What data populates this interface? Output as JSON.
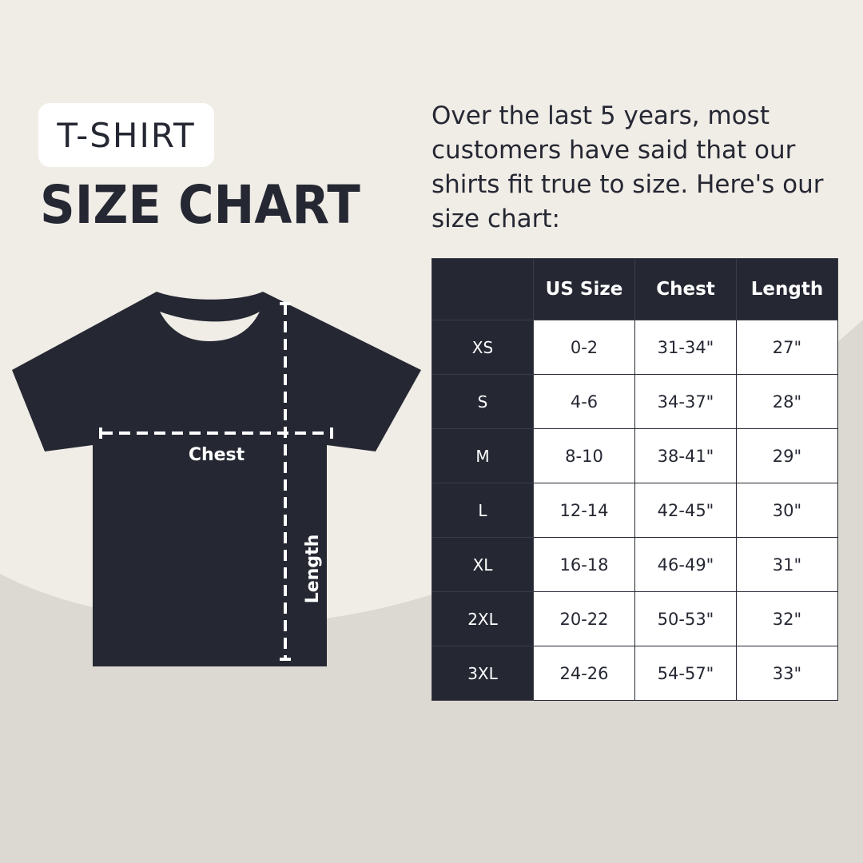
{
  "header": {
    "badge": "T-SHIRT",
    "title": "SIZE CHART"
  },
  "description": "Over the last 5 years, most customers have said that our shirts fit true to size. Here's our size chart:",
  "diagram": {
    "chest_label": "Chest",
    "length_label": "Length",
    "icon": "t-shirt-icon"
  },
  "table": {
    "columns": [
      "",
      "US Size",
      "Chest",
      "Length"
    ],
    "rows": [
      [
        "XS",
        "0-2",
        "31-34\"",
        "27\""
      ],
      [
        "S",
        "4-6",
        "34-37\"",
        "28\""
      ],
      [
        "M",
        "8-10",
        "38-41\"",
        "29\""
      ],
      [
        "L",
        "12-14",
        "42-45\"",
        "30\""
      ],
      [
        "XL",
        "16-18",
        "46-49\"",
        "31\""
      ],
      [
        "2XL",
        "20-22",
        "50-53\"",
        "32\""
      ],
      [
        "3XL",
        "24-26",
        "54-57\"",
        "33\""
      ]
    ]
  },
  "colors": {
    "dark": "#252833",
    "background_light": "#f0ece6",
    "background_dark": "#dcd8d2"
  }
}
